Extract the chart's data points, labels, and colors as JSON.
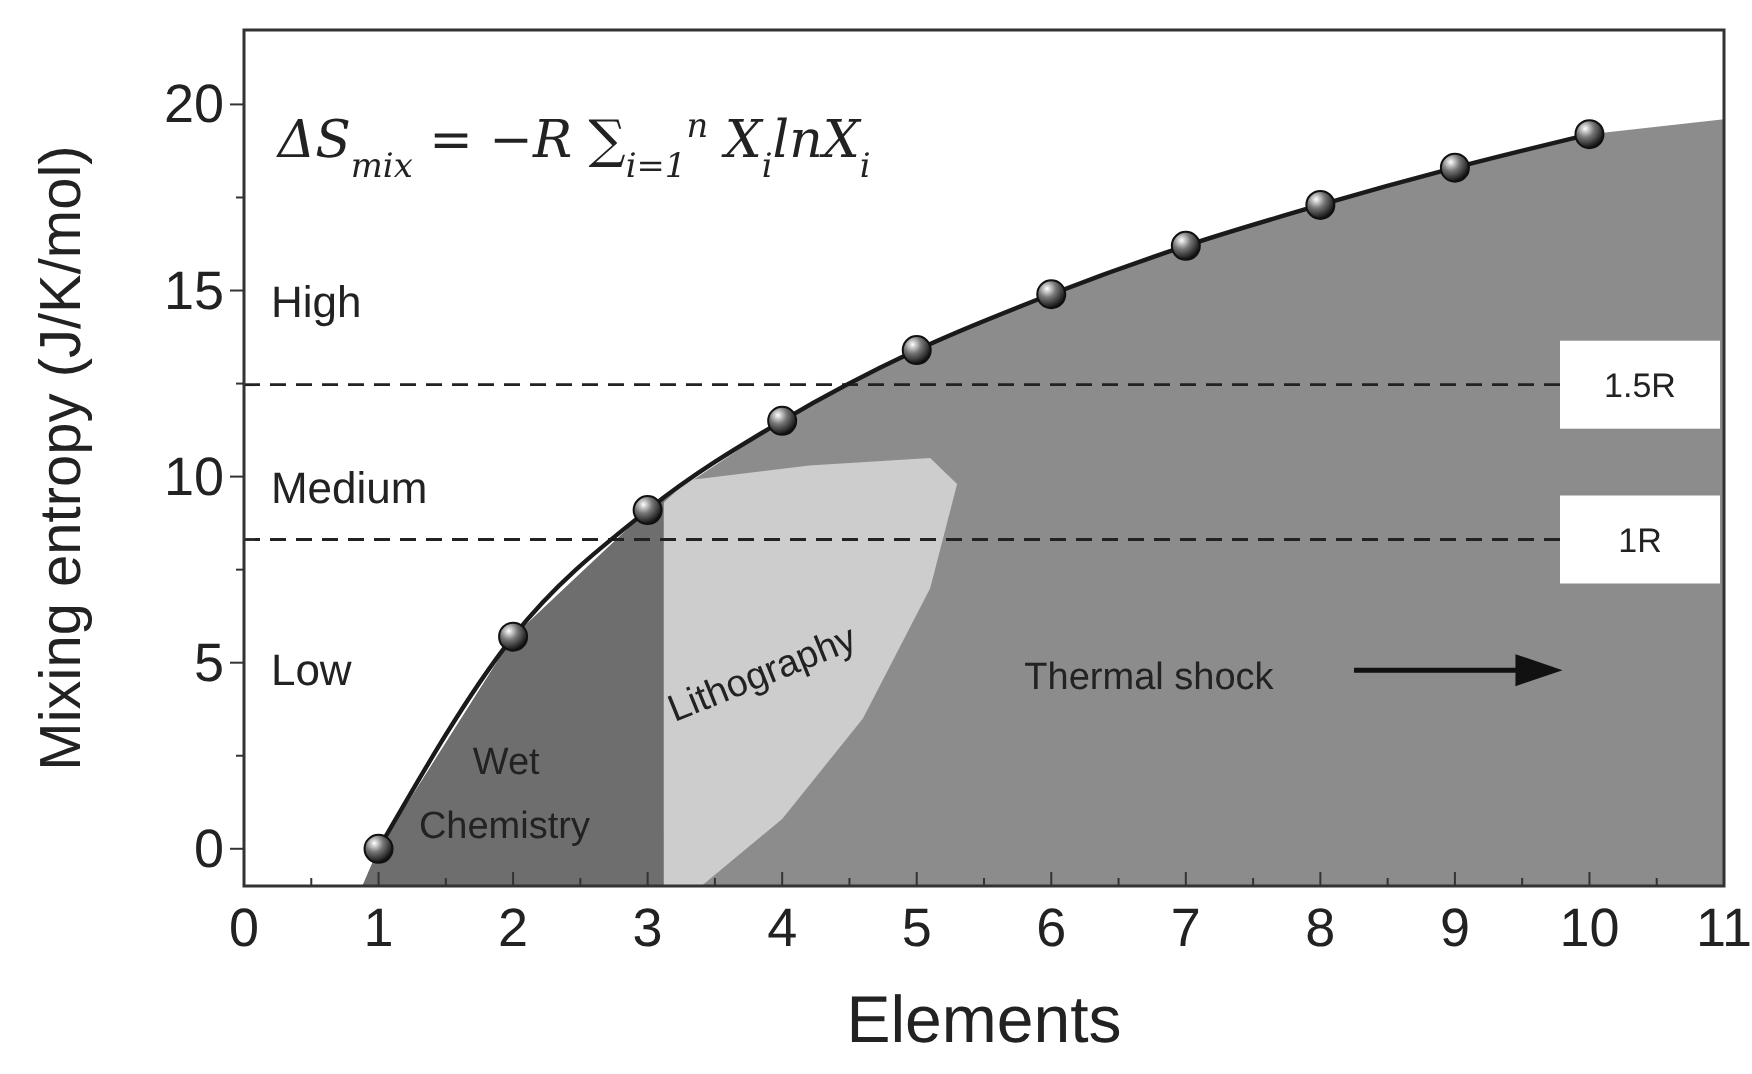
{
  "chart_data": {
    "type": "line",
    "xlabel": "Elements",
    "ylabel": "Mixing entropy (J/K/mol)",
    "x": [
      1,
      2,
      3,
      4,
      5,
      6,
      7,
      8,
      9,
      10
    ],
    "series": [
      {
        "color": "#1a1a1a",
        "values": [
          0,
          5.7,
          9.1,
          11.5,
          13.4,
          14.9,
          16.2,
          17.3,
          18.3,
          19.2
        ]
      }
    ],
    "marker": "circle",
    "line_style": "solid",
    "xlim": [
      0,
      11
    ],
    "xticks": [
      0,
      {
        "value": 0.5,
        "label": null
      },
      1,
      {
        "value": 1.5,
        "label": null
      },
      2,
      {
        "value": 2.5,
        "label": null
      },
      3,
      {
        "value": 3.5,
        "label": null
      },
      4,
      {
        "value": 4.5,
        "label": null
      },
      5,
      {
        "value": 5.5,
        "label": null
      },
      6,
      {
        "value": 6.5,
        "label": null
      },
      7,
      {
        "value": 7.5,
        "label": null
      },
      8,
      {
        "value": 8.5,
        "label": null
      },
      9,
      {
        "value": 9.5,
        "label": null
      },
      10,
      {
        "value": 10.5,
        "label": null
      },
      11
    ],
    "ylim": [
      -1,
      22
    ],
    "yticks": [
      0,
      {
        "value": 2.5,
        "label": null
      },
      5,
      {
        "value": 7.5,
        "label": null
      },
      10,
      {
        "value": 12.5,
        "label": null
      },
      15,
      {
        "value": 17.5,
        "label": null
      },
      20
    ],
    "ref_lines": [
      {
        "axis": "y",
        "value": 12.47,
        "label": "1.5R",
        "line_style": "dashed",
        "color": "#222222"
      },
      {
        "axis": "y",
        "value": 8.31,
        "label": "1R",
        "line_style": "dashed",
        "color": "#222222"
      }
    ],
    "annotations": [
      "ΔS$_{mix}$ = −R ∑$_{i=1}$$^{n}$ X$_{i}$lnX$_{i}$",
      "High",
      "Medium",
      "Low",
      "Wet",
      "Chemistry",
      "Lithography",
      "Thermal shock"
    ]
  }
}
